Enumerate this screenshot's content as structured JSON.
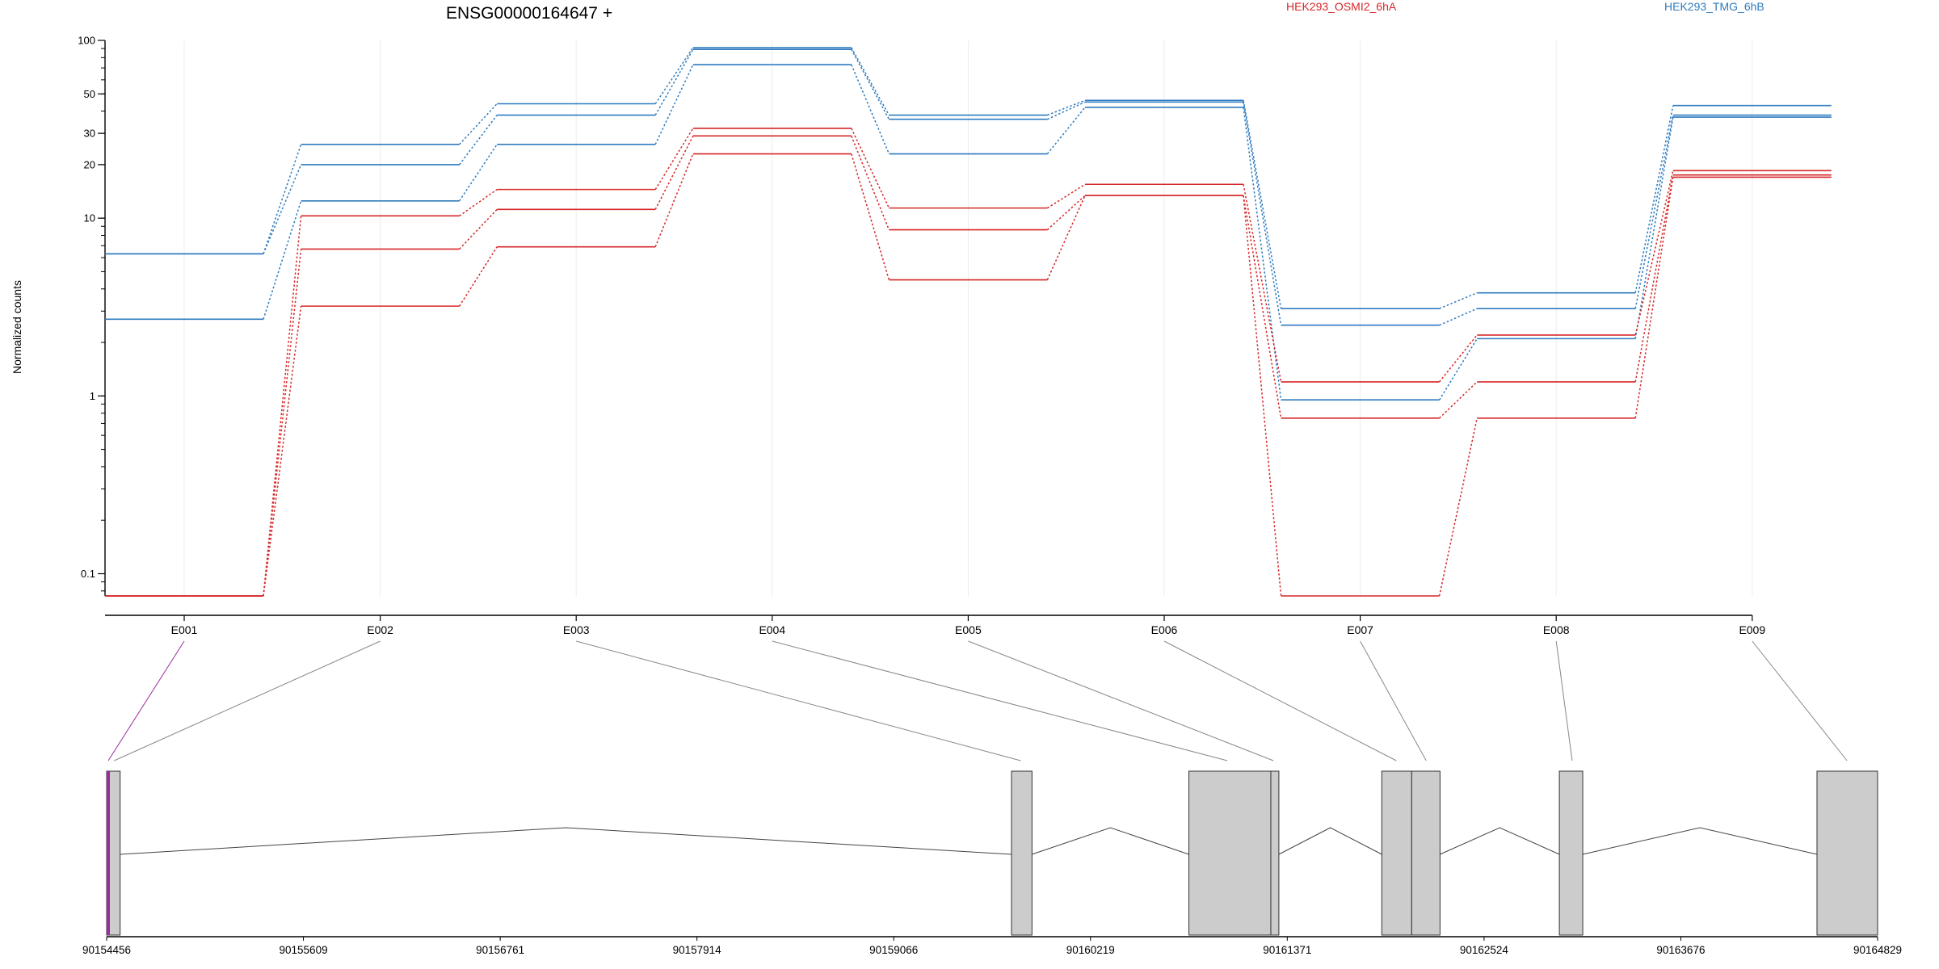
{
  "chart_data": {
    "type": "line",
    "title": "ENSG00000164647 +",
    "ylabel": "Normalized counts",
    "xlabel": "",
    "yscale": "log",
    "ylim": [
      0.075,
      100
    ],
    "ytick_labels": [
      "100",
      "50",
      "30",
      "20",
      "10",
      "1",
      "0.1"
    ],
    "ytick_values": [
      100,
      50,
      30,
      20,
      10,
      1,
      0.1
    ],
    "grid": "vertical",
    "legend_placement": "top",
    "categories": [
      "E001",
      "E002",
      "E003",
      "E004",
      "E005",
      "E006",
      "E007",
      "E008",
      "E009"
    ],
    "legend": [
      {
        "name": "HEK293_OSMI2_6hA",
        "color": "#d62728"
      },
      {
        "name": "HEK293_TMG_6hB",
        "color": "#2e7bbf"
      }
    ],
    "series": [
      {
        "group": "HEK293_TMG_6hB",
        "color": "#2e7bbf",
        "values": [
          6.3,
          26,
          44,
          91,
          38,
          46,
          3.1,
          3.8,
          43
        ]
      },
      {
        "group": "HEK293_TMG_6hB",
        "color": "#2e7bbf",
        "values": [
          6.3,
          20,
          38,
          89,
          36,
          45,
          2.5,
          3.1,
          38
        ]
      },
      {
        "group": "HEK293_TMG_6hB",
        "color": "#2e7bbf",
        "values": [
          2.7,
          12.5,
          26,
          73,
          23,
          42,
          0.95,
          2.1,
          37
        ]
      },
      {
        "group": "HEK293_OSMI2_6hA",
        "color": "#d62728",
        "values": [
          0.075,
          10.3,
          14.5,
          32,
          11.4,
          15.5,
          1.2,
          2.2,
          18.5
        ]
      },
      {
        "group": "HEK293_OSMI2_6hA",
        "color": "#d62728",
        "values": [
          0.075,
          6.7,
          11.2,
          29,
          8.6,
          13.4,
          0.75,
          1.2,
          17.5
        ]
      },
      {
        "group": "HEK293_OSMI2_6hA",
        "color": "#d62728",
        "values": [
          0.075,
          3.2,
          6.9,
          23,
          4.5,
          13.4,
          0.075,
          0.75,
          17
        ]
      }
    ],
    "gene_model": {
      "coord_labels": [
        "90154456",
        "90155609",
        "90156761",
        "90157914",
        "90159066",
        "90160219",
        "90161371",
        "90162524",
        "90163676",
        "90164829"
      ],
      "coord_start": 90154456,
      "coord_end": 90164829,
      "exon_blocks": [
        {
          "start": 90154456,
          "end": 90154535
        },
        {
          "start": 90159756,
          "end": 90159876
        },
        {
          "start": 90160795,
          "end": 90161275
        },
        {
          "start": 90161275,
          "end": 90161322
        },
        {
          "start": 90161925,
          "end": 90162100
        },
        {
          "start": 90162100,
          "end": 90162266
        },
        {
          "start": 90162965,
          "end": 90163102
        },
        {
          "start": 90164474,
          "end": 90164829
        }
      ],
      "introns": [
        {
          "start": 90154535,
          "end": 90159756
        },
        {
          "start": 90159876,
          "end": 90160795
        },
        {
          "start": 90161322,
          "end": 90161925
        },
        {
          "start": 90162266,
          "end": 90162965
        },
        {
          "start": 90163102,
          "end": 90164474
        }
      ],
      "exon_map": [
        {
          "exon": "E001",
          "coord": 90154456
        },
        {
          "exon": "E002",
          "coord": 90154500
        },
        {
          "exon": "E003",
          "coord": 90159810
        },
        {
          "exon": "E004",
          "coord": 90161020
        },
        {
          "exon": "E005",
          "coord": 90161290
        },
        {
          "exon": "E006",
          "coord": 90162010
        },
        {
          "exon": "E007",
          "coord": 90162185
        },
        {
          "exon": "E008",
          "coord": 90163040
        },
        {
          "exon": "E009",
          "coord": 90164650
        }
      ],
      "highlight_color": "#9b2d9b",
      "exon_fill": "#cccccc"
    }
  }
}
